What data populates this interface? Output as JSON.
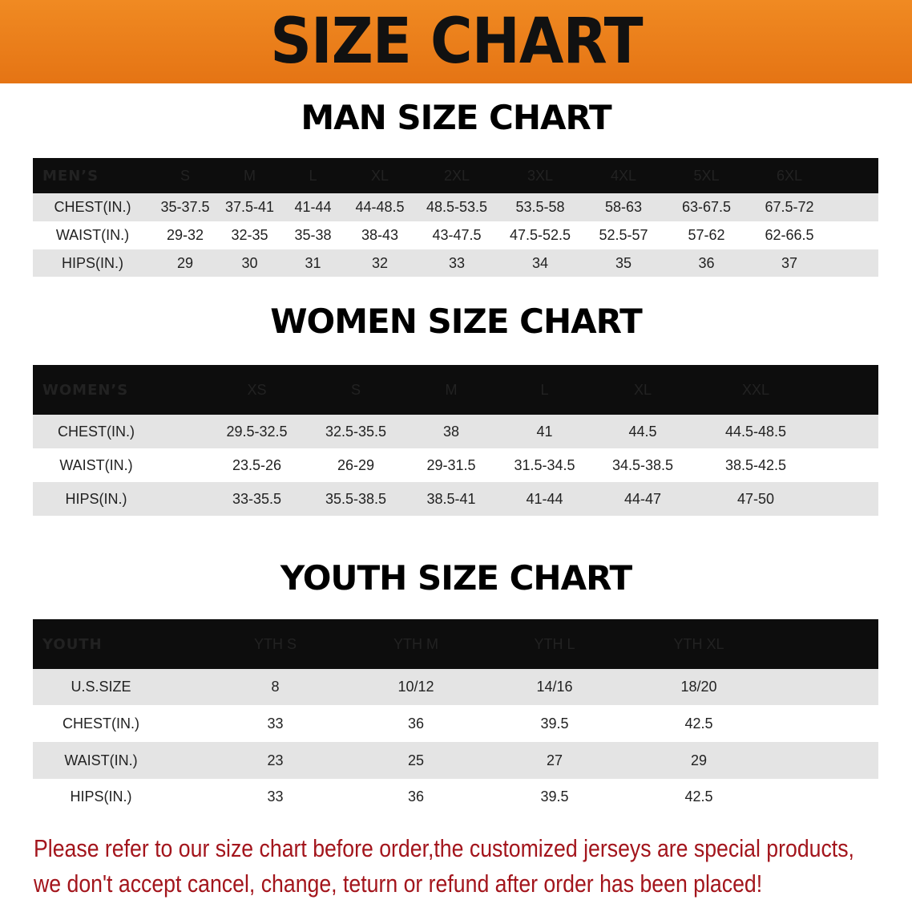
{
  "banner_title": "SIZE CHART",
  "men": {
    "title": "MAN SIZE CHART",
    "header": [
      "MEN’S",
      "S",
      "M",
      "L",
      "XL",
      "2XL",
      "3XL",
      "4XL",
      "5XL",
      "6XL"
    ],
    "rows": [
      [
        "CHEST(IN.)",
        "35-37.5",
        "37.5-41",
        "41-44",
        "44-48.5",
        "48.5-53.5",
        "53.5-58",
        "58-63",
        "63-67.5",
        "67.5-72"
      ],
      [
        "WAIST(IN.)",
        "29-32",
        "32-35",
        "35-38",
        "38-43",
        "43-47.5",
        "47.5-52.5",
        "52.5-57",
        "57-62",
        "62-66.5"
      ],
      [
        "HIPS(IN.)",
        "29",
        "30",
        "31",
        "32",
        "33",
        "34",
        "35",
        "36",
        "37"
      ]
    ]
  },
  "women": {
    "title": "WOMEN SIZE CHART",
    "header": [
      "WOMEN’S",
      "XS",
      "S",
      "M",
      "L",
      "XL",
      "XXL"
    ],
    "rows": [
      [
        "CHEST(IN.)",
        "29.5-32.5",
        "32.5-35.5",
        "38",
        "41",
        "44.5",
        "44.5-48.5"
      ],
      [
        "WAIST(IN.)",
        "23.5-26",
        "26-29",
        "29-31.5",
        "31.5-34.5",
        "34.5-38.5",
        "38.5-42.5"
      ],
      [
        "HIPS(IN.)",
        "33-35.5",
        "35.5-38.5",
        "38.5-41",
        "41-44",
        "44-47",
        "47-50"
      ]
    ]
  },
  "youth": {
    "title": "YOUTH SIZE CHART",
    "header": [
      "YOUTH",
      "YTH S",
      "YTH M",
      "YTH L",
      "YTH XL"
    ],
    "rows": [
      [
        "U.S.SIZE",
        "8",
        "10/12",
        "14/16",
        "18/20"
      ],
      [
        "CHEST(IN.)",
        "33",
        "36",
        "39.5",
        "42.5"
      ],
      [
        "WAIST(IN.)",
        "23",
        "25",
        "27",
        "29"
      ],
      [
        "HIPS(IN.)",
        "33",
        "36",
        "39.5",
        "42.5"
      ]
    ]
  },
  "note": [
    "Please refer to our size chart before order,the customized jerseys are special products,",
    "we don't accept cancel, change, teturn or refund after order has been placed!"
  ],
  "colors": {
    "banner": "#e8791a",
    "header_bg": "#0d0d0d",
    "row_gray": "#e4e4e4",
    "note": "#a3151c"
  }
}
